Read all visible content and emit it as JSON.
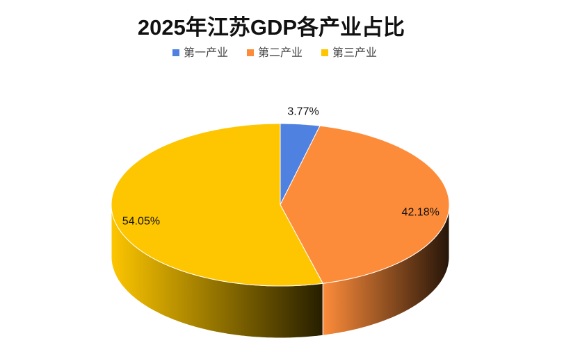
{
  "chart_data": {
    "type": "pie",
    "title": "2025年江苏GDP各产业占比",
    "categories": [
      "第一产业",
      "第二产业",
      "第三产业"
    ],
    "values": [
      3.77,
      42.18,
      54.05
    ],
    "value_labels": [
      "3.77%",
      "42.18%",
      "54.05%"
    ],
    "colors": [
      "#4f81e0",
      "#fd8c3a",
      "#fdc600"
    ],
    "legend": "top"
  }
}
